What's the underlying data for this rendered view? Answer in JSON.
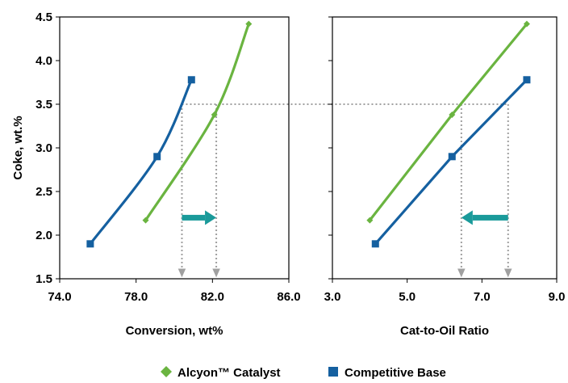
{
  "chart_data": [
    {
      "type": "line",
      "ylabel": "Coke, wt.%",
      "xlabel": "Conversion, wt%",
      "xlim": [
        74.0,
        86.0
      ],
      "ylim": [
        1.5,
        4.5
      ],
      "x_ticks": [
        "74.0",
        "78.0",
        "82.0",
        "86.0"
      ],
      "y_ticks": [
        "1.5",
        "2.0",
        "2.5",
        "3.0",
        "3.5",
        "4.0",
        "4.5"
      ],
      "series": [
        {
          "name": "Alcyon™ Catalyst",
          "color": "#6ab440",
          "marker": "diamond",
          "points": [
            [
              78.5,
              2.17
            ],
            [
              82.1,
              3.38
            ],
            [
              83.9,
              4.42
            ]
          ]
        },
        {
          "name": "Competitive Base",
          "color": "#1560a0",
          "marker": "square",
          "points": [
            [
              75.6,
              1.9
            ],
            [
              79.1,
              2.9
            ],
            [
              80.9,
              3.78
            ]
          ]
        }
      ],
      "reference_lines": {
        "y": 3.5,
        "x_values": [
          80.4,
          82.2
        ]
      },
      "arrow": {
        "from_x": 80.4,
        "to_x": 82.2,
        "y": 2.2,
        "direction": "right",
        "color": "#1a9a9a"
      }
    },
    {
      "type": "line",
      "xlabel": "Cat-to-Oil Ratio",
      "xlim": [
        3.0,
        9.0
      ],
      "ylim": [
        1.5,
        4.5
      ],
      "x_ticks": [
        "3.0",
        "5.0",
        "7.0",
        "9.0"
      ],
      "series": [
        {
          "name": "Alcyon™ Catalyst",
          "color": "#6ab440",
          "marker": "diamond",
          "points": [
            [
              4.0,
              2.17
            ],
            [
              6.2,
              3.38
            ],
            [
              8.2,
              4.42
            ]
          ]
        },
        {
          "name": "Competitive Base",
          "color": "#1560a0",
          "marker": "square",
          "points": [
            [
              4.15,
              1.9
            ],
            [
              6.2,
              2.9
            ],
            [
              8.2,
              3.78
            ]
          ]
        }
      ],
      "reference_lines": {
        "y": 3.5,
        "x_values": [
          6.45,
          7.7
        ]
      },
      "arrow": {
        "from_x": 7.7,
        "to_x": 6.45,
        "y": 2.2,
        "direction": "left",
        "color": "#1a9a9a"
      }
    }
  ],
  "legend": {
    "placement": "bottom-center",
    "items": [
      {
        "label": "Alcyon™ Catalyst",
        "color": "#6ab440",
        "marker": "diamond"
      },
      {
        "label": "Competitive Base",
        "color": "#1560a0",
        "marker": "square"
      }
    ]
  },
  "colors": {
    "reference_line": "#a0a0a0",
    "axis": "#000000"
  }
}
